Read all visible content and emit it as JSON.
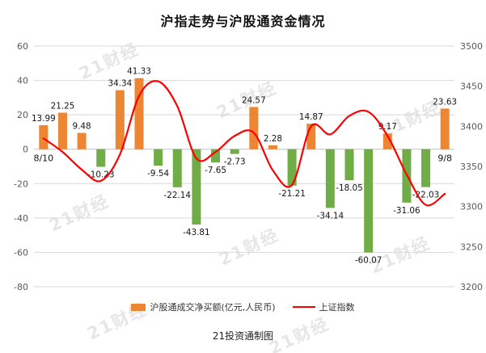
{
  "title": "沪指走势与沪股通资金情况",
  "watermark": "21财经",
  "footer": {
    "credit": "21投资通制图"
  },
  "colors": {
    "bar_positive": "#ED8633",
    "bar_negative": "#70AD47",
    "index_line": "#FF0000",
    "gridline": "#D9D9D9",
    "zero_line": "#C0C0C0"
  },
  "chart_data": {
    "type": "bar",
    "title": "沪指走势与沪股通资金情况",
    "x_first_label": "8/10",
    "x_last_label": "9/8",
    "grid": true,
    "legend_position": "bottom",
    "left_axis": {
      "min": -80,
      "max": 60,
      "ticks": [
        60,
        40,
        20,
        0,
        -20,
        -40,
        -60,
        -80
      ]
    },
    "right_axis": {
      "min": 3200,
      "max": 3500,
      "ticks": [
        3500,
        3450,
        3400,
        3350,
        3300,
        3250,
        3200
      ]
    },
    "series": [
      {
        "name": "沪股通成交净买额(亿元,人民币)",
        "type": "bar",
        "values": [
          13.99,
          21.25,
          9.48,
          -10.23,
          34.34,
          41.33,
          -9.54,
          -22.14,
          -43.81,
          -7.65,
          -2.73,
          24.57,
          2.28,
          -21.21,
          14.87,
          -34.14,
          -18.05,
          -60.07,
          9.17,
          -31.06,
          -22.03,
          23.63
        ]
      },
      {
        "name": "上证指数",
        "type": "line",
        "values": [
          3385,
          3368,
          3346,
          3332,
          3365,
          3438,
          3456,
          3425,
          3360,
          3368,
          3388,
          3392,
          3345,
          3327,
          3400,
          3390,
          3413,
          3418,
          3388,
          3340,
          3302,
          3316
        ]
      }
    ],
    "legend": {
      "bars": "沪股通成交净买额(亿元,人民币)",
      "line": "上证指数"
    }
  }
}
